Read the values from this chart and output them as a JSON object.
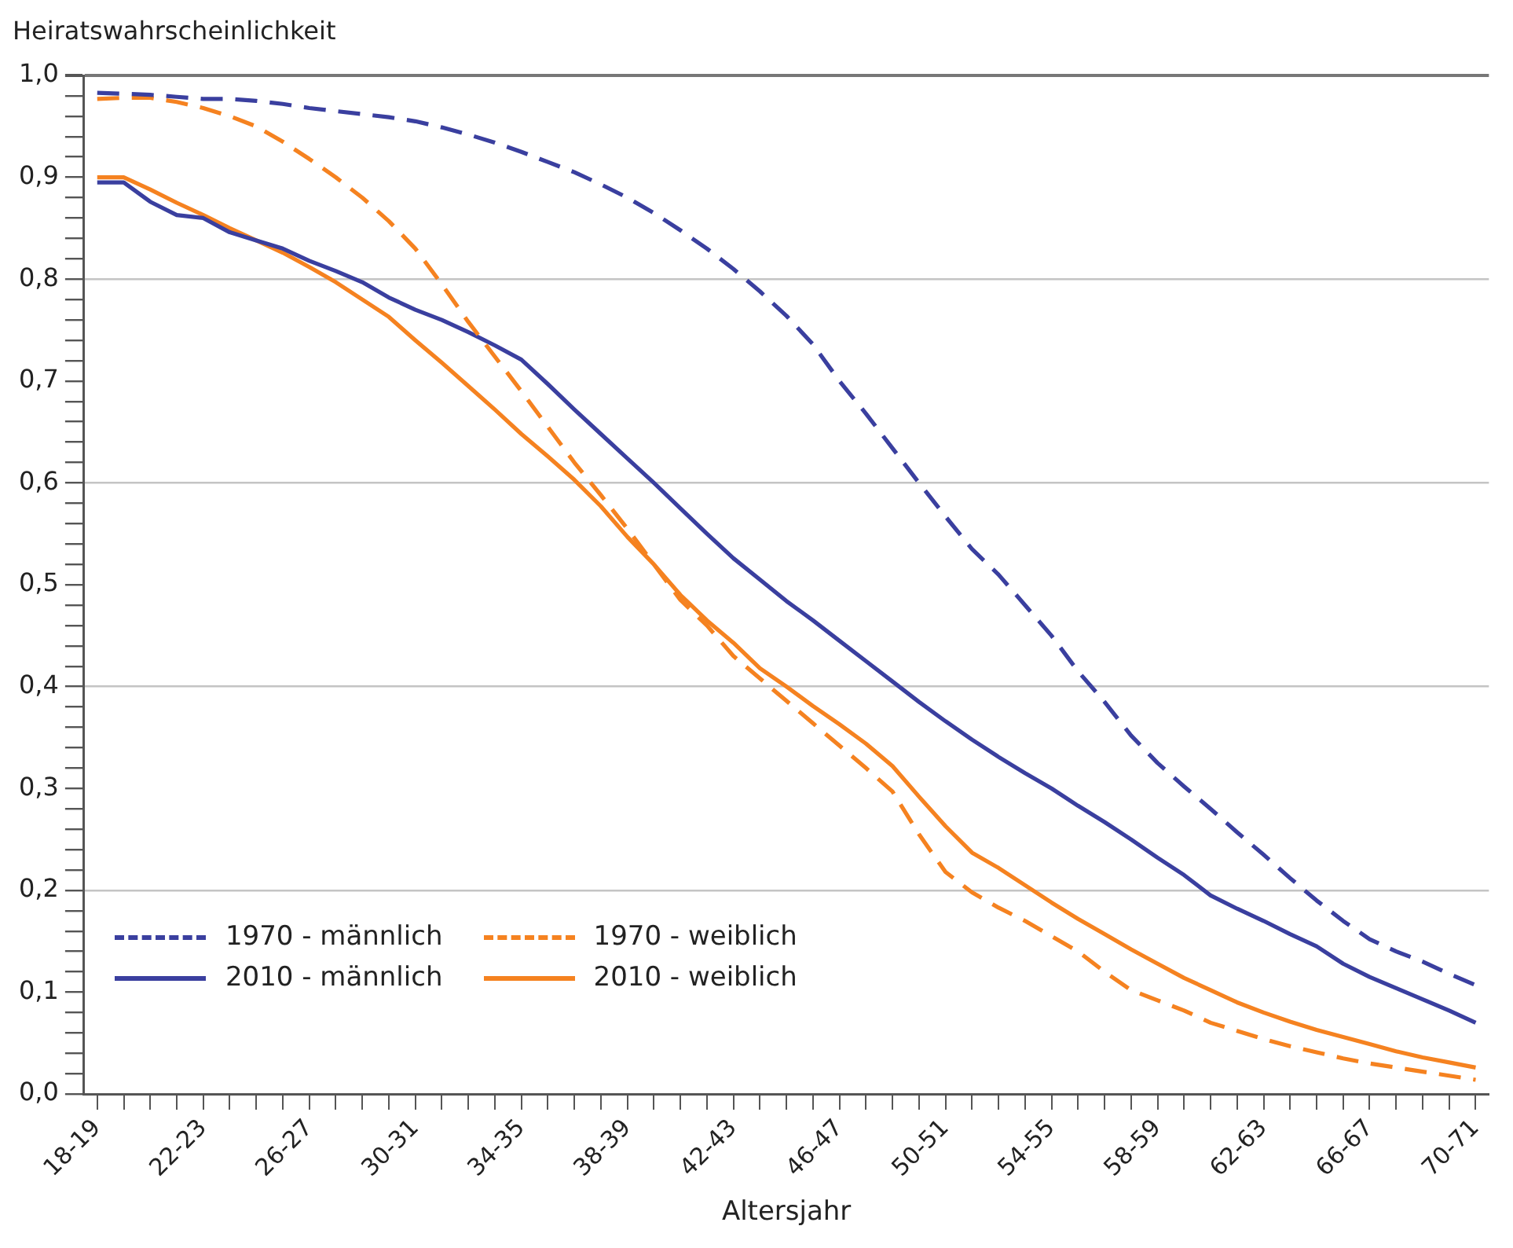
{
  "chart_data": {
    "type": "line",
    "ylabel": "Heiratswahrscheinlichkeit",
    "xlabel": "Altersjahr",
    "categories": [
      "18-19",
      null,
      null,
      null,
      "22-23",
      null,
      null,
      null,
      "26-27",
      null,
      null,
      null,
      "30-31",
      null,
      null,
      null,
      "34-35",
      null,
      null,
      null,
      "38-39",
      null,
      null,
      null,
      "42-43",
      null,
      null,
      null,
      "46-47",
      null,
      null,
      null,
      "50-51",
      null,
      null,
      null,
      "54-55",
      null,
      null,
      null,
      "58-59",
      null,
      null,
      null,
      "62-63",
      null,
      null,
      null,
      "66-67",
      null,
      null,
      null,
      "70-71"
    ],
    "series": [
      {
        "name": "1970 - männlich",
        "color": "#3a3f9f",
        "line_style": "dashed",
        "values": [
          0.983,
          0.982,
          0.981,
          0.979,
          0.977,
          0.977,
          0.975,
          0.972,
          0.968,
          0.965,
          0.962,
          0.959,
          0.955,
          0.949,
          0.942,
          0.934,
          0.925,
          0.915,
          0.905,
          0.893,
          0.88,
          0.865,
          0.848,
          0.83,
          0.81,
          0.788,
          0.764,
          0.736,
          0.7,
          0.668,
          0.634,
          0.6,
          0.567,
          0.535,
          0.51,
          0.48,
          0.45,
          0.415,
          0.385,
          0.352,
          0.325,
          0.302,
          0.28,
          0.257,
          0.235,
          0.212,
          0.19,
          0.17,
          0.152,
          0.14,
          0.13,
          0.118,
          0.107
        ]
      },
      {
        "name": "1970 - weiblich",
        "color": "#f58220",
        "line_style": "dashed",
        "values": [
          0.977,
          0.978,
          0.978,
          0.974,
          0.968,
          0.96,
          0.95,
          0.935,
          0.918,
          0.9,
          0.88,
          0.857,
          0.83,
          0.795,
          0.758,
          0.724,
          0.69,
          0.655,
          0.62,
          0.588,
          0.555,
          0.52,
          0.485,
          0.46,
          0.43,
          0.408,
          0.386,
          0.364,
          0.342,
          0.32,
          0.297,
          0.255,
          0.218,
          0.198,
          0.183,
          0.17,
          0.155,
          0.14,
          0.12,
          0.102,
          0.092,
          0.082,
          0.07,
          0.062,
          0.054,
          0.047,
          0.041,
          0.035,
          0.03,
          0.026,
          0.022,
          0.018,
          0.014
        ]
      },
      {
        "name": "2010 - männlich",
        "color": "#3a3f9f",
        "line_style": "solid",
        "values": [
          0.895,
          0.895,
          0.876,
          0.863,
          0.86,
          0.846,
          0.838,
          0.83,
          0.818,
          0.808,
          0.797,
          0.782,
          0.77,
          0.76,
          0.748,
          0.735,
          0.721,
          0.697,
          0.672,
          0.648,
          0.624,
          0.6,
          0.575,
          0.55,
          0.526,
          0.505,
          0.484,
          0.465,
          0.445,
          0.425,
          0.405,
          0.385,
          0.366,
          0.348,
          0.331,
          0.315,
          0.3,
          0.283,
          0.267,
          0.25,
          0.232,
          0.215,
          0.195,
          0.182,
          0.17,
          0.157,
          0.145,
          0.128,
          0.115,
          0.104,
          0.093,
          0.082,
          0.07
        ]
      },
      {
        "name": "2010 - weiblich",
        "color": "#f58220",
        "line_style": "solid",
        "values": [
          0.9,
          0.9,
          0.888,
          0.875,
          0.863,
          0.85,
          0.838,
          0.826,
          0.812,
          0.797,
          0.78,
          0.763,
          0.74,
          0.718,
          0.695,
          0.672,
          0.648,
          0.626,
          0.603,
          0.577,
          0.547,
          0.52,
          0.49,
          0.465,
          0.443,
          0.418,
          0.4,
          0.381,
          0.363,
          0.344,
          0.322,
          0.292,
          0.263,
          0.237,
          0.222,
          0.205,
          0.188,
          0.172,
          0.157,
          0.142,
          0.128,
          0.114,
          0.102,
          0.09,
          0.08,
          0.071,
          0.063,
          0.056,
          0.049,
          0.042,
          0.036,
          0.031,
          0.026
        ]
      }
    ],
    "ylim": [
      0,
      1
    ],
    "yticks": [
      {
        "value": 0,
        "label": "0,0"
      },
      {
        "value": 0.02,
        "label": null
      },
      {
        "value": 0.04,
        "label": null
      },
      {
        "value": 0.06,
        "label": null
      },
      {
        "value": 0.08,
        "label": null
      },
      {
        "value": 0.1,
        "label": "0,1"
      },
      {
        "value": 0.12,
        "label": null
      },
      {
        "value": 0.14,
        "label": null
      },
      {
        "value": 0.16,
        "label": null
      },
      {
        "value": 0.18,
        "label": null
      },
      {
        "value": 0.2,
        "label": "0,2"
      },
      {
        "value": 0.22,
        "label": null
      },
      {
        "value": 0.24,
        "label": null
      },
      {
        "value": 0.26,
        "label": null
      },
      {
        "value": 0.28,
        "label": null
      },
      {
        "value": 0.3,
        "label": "0,3"
      },
      {
        "value": 0.32,
        "label": null
      },
      {
        "value": 0.34,
        "label": null
      },
      {
        "value": 0.36,
        "label": null
      },
      {
        "value": 0.38,
        "label": null
      },
      {
        "value": 0.4,
        "label": "0,4"
      },
      {
        "value": 0.42,
        "label": null
      },
      {
        "value": 0.44,
        "label": null
      },
      {
        "value": 0.46,
        "label": null
      },
      {
        "value": 0.48,
        "label": null
      },
      {
        "value": 0.5,
        "label": "0,5"
      },
      {
        "value": 0.52,
        "label": null
      },
      {
        "value": 0.54,
        "label": null
      },
      {
        "value": 0.56,
        "label": null
      },
      {
        "value": 0.58,
        "label": null
      },
      {
        "value": 0.6,
        "label": "0,6"
      },
      {
        "value": 0.62,
        "label": null
      },
      {
        "value": 0.64,
        "label": null
      },
      {
        "value": 0.66,
        "label": null
      },
      {
        "value": 0.68,
        "label": null
      },
      {
        "value": 0.7,
        "label": "0,7"
      },
      {
        "value": 0.72,
        "label": null
      },
      {
        "value": 0.74,
        "label": null
      },
      {
        "value": 0.76,
        "label": null
      },
      {
        "value": 0.78,
        "label": null
      },
      {
        "value": 0.8,
        "label": "0,8"
      },
      {
        "value": 0.82,
        "label": null
      },
      {
        "value": 0.84,
        "label": null
      },
      {
        "value": 0.86,
        "label": null
      },
      {
        "value": 0.88,
        "label": null
      },
      {
        "value": 0.9,
        "label": "0,9"
      },
      {
        "value": 0.92,
        "label": null
      },
      {
        "value": 0.94,
        "label": null
      },
      {
        "value": 0.96,
        "label": null
      },
      {
        "value": 0.98,
        "label": null
      },
      {
        "value": 1,
        "label": "1,0"
      }
    ],
    "grid": "y",
    "legend": "bottom left",
    "marker": "none"
  }
}
